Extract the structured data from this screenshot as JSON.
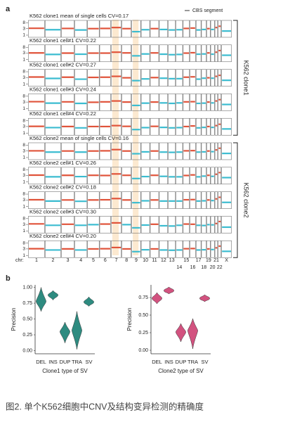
{
  "chart_data": [
    {
      "type": "cnv",
      "panel_label": "a",
      "legend": "CBS segment",
      "x_label": "chr:",
      "categories": [
        "1",
        "2",
        "3",
        "4",
        "5",
        "6",
        "7",
        "8",
        "9",
        "10",
        "11",
        "12",
        "13",
        "14",
        "15",
        "16",
        "17",
        "18",
        "19",
        "20",
        "21",
        "22",
        "X"
      ],
      "yscale": "log",
      "ylim": [
        0.7,
        12
      ],
      "yticks": [
        1,
        3,
        8
      ],
      "high_color": "#e0533a",
      "low_color": "#3bbcd0",
      "groups": [
        {
          "label": "K562 clone1",
          "panels": [
            0,
            4
          ]
        },
        {
          "label": "K562 clone2",
          "panels": [
            5,
            9
          ]
        }
      ],
      "panels": [
        {
          "title": "K562 clone1 mean of single cells CV=0.17",
          "values": [
            3.2,
            2.5,
            3.1,
            2.4,
            3,
            3.1,
            3.6,
            3,
            1.8,
            2.5,
            3,
            2.6,
            2.4,
            2.5,
            3.1,
            3.3,
            2.4,
            2.6,
            3,
            2.6,
            3.6,
            4.5,
            2
          ]
        },
        {
          "title": "K562 clone1 cell#1 CV=0.22",
          "values": [
            3.1,
            2.4,
            3,
            2.5,
            3,
            3,
            3.5,
            3.1,
            1.9,
            2.6,
            3.1,
            2.5,
            2.3,
            2.4,
            3,
            3.2,
            2.5,
            2.6,
            3.1,
            2.5,
            3.5,
            4.6,
            2.1
          ]
        },
        {
          "title": "K562 clone1 cell#2 CV=0.27",
          "values": [
            3.3,
            2.6,
            3.2,
            2.3,
            3.1,
            3.2,
            3.7,
            2.9,
            1.8,
            2.4,
            3,
            2.7,
            2.5,
            2.5,
            3.2,
            3.4,
            2.3,
            2.7,
            2.9,
            2.7,
            3.7,
            4.4,
            1.9
          ]
        },
        {
          "title": "K562 clone1 cell#3 CV=0.24",
          "values": [
            3.2,
            2.5,
            3.1,
            2.4,
            2.9,
            3.1,
            3.6,
            3,
            1.7,
            2.5,
            3,
            2.6,
            2.4,
            2.6,
            3.1,
            3.2,
            2.4,
            2.5,
            3,
            2.6,
            3.6,
            4.5,
            2
          ]
        },
        {
          "title": "K562 clone1 cell#4 CV=0.22",
          "values": [
            3.1,
            2.5,
            3,
            2.4,
            3,
            3,
            3.5,
            3.1,
            1.8,
            2.5,
            3.1,
            2.6,
            2.4,
            2.5,
            3,
            3.3,
            2.4,
            2.6,
            3,
            2.6,
            3.5,
            4.4,
            2
          ]
        },
        {
          "title": "K562 clone2 mean of single cells CV=0.16",
          "values": [
            3.1,
            2.5,
            3,
            2.5,
            3,
            3.1,
            3.8,
            3,
            1.9,
            2.6,
            3,
            2.5,
            2.4,
            2.5,
            3.1,
            3.2,
            2.5,
            2.6,
            3,
            2.7,
            3.6,
            4.8,
            2
          ]
        },
        {
          "title": "K562 clone2 cell#1 CV=0.26",
          "values": [
            3.2,
            2.4,
            3.1,
            2.5,
            3.1,
            3,
            3.9,
            3.1,
            1.8,
            2.5,
            3.1,
            2.6,
            2.4,
            2.4,
            3,
            3.3,
            2.4,
            2.7,
            3.1,
            2.6,
            3.7,
            4.9,
            2.1
          ]
        },
        {
          "title": "K562 clone2 cell#2 CV=0.18",
          "values": [
            3.1,
            2.5,
            3,
            2.4,
            3,
            3.1,
            3.8,
            3,
            1.9,
            2.6,
            3,
            2.5,
            2.5,
            2.5,
            3.1,
            3.2,
            2.5,
            2.6,
            3,
            2.7,
            3.6,
            4.7,
            2
          ]
        },
        {
          "title": "K562 clone2 cell#3 CV=0.30",
          "values": [
            3.3,
            2.6,
            3.1,
            2.6,
            2.9,
            3.2,
            3.9,
            2.9,
            1.7,
            2.7,
            3.1,
            2.4,
            2.3,
            2.6,
            3.2,
            3.1,
            2.6,
            2.5,
            2.9,
            2.8,
            3.5,
            4.9,
            1.9
          ]
        },
        {
          "title": "K562 clone2 cell#4 CV=0.20",
          "values": [
            3.1,
            2.5,
            3,
            2.5,
            3,
            3.1,
            3.8,
            3,
            1.9,
            2.6,
            3,
            2.5,
            2.4,
            2.5,
            3.1,
            3.2,
            2.5,
            2.6,
            3,
            2.7,
            3.6,
            4.8,
            2
          ]
        }
      ]
    },
    {
      "type": "violin",
      "panel_label": "b",
      "y_label": "Precision",
      "x_label": "Clone1 type of SV",
      "categories": [
        "DEL",
        "INS",
        "DUP",
        "TRA",
        "SV"
      ],
      "color": "#2e8b80",
      "ylim": [
        -0.05,
        1.04
      ],
      "yticks": [
        {
          "value": 0,
          "label": "0.00"
        },
        {
          "value": 0.25,
          "label": "0.25"
        },
        {
          "value": 0.5,
          "label": "0.50"
        },
        {
          "value": 0.75,
          "label": "0.75"
        },
        {
          "value": 1,
          "label": "1.00"
        }
      ],
      "values": [
        0.78,
        0.88,
        0.3,
        0.32,
        0.77
      ],
      "lows": [
        0.62,
        0.8,
        0.12,
        0.02,
        0.7
      ],
      "highs": [
        1.0,
        0.95,
        0.45,
        0.62,
        0.85
      ]
    },
    {
      "type": "violin",
      "y_label": "Precision",
      "x_label": "Clone2 type of SV",
      "categories": [
        "DEL",
        "INS",
        "DUP",
        "TRA",
        "SV"
      ],
      "color": "#d2527f",
      "ylim": [
        -0.05,
        0.93
      ],
      "yticks": [
        {
          "value": 0,
          "label": "0.00"
        },
        {
          "value": 0.25,
          "label": "0.25"
        },
        {
          "value": 0.5,
          "label": "0.50"
        },
        {
          "value": 0.75,
          "label": "0.75"
        }
      ],
      "values": [
        0.74,
        0.85,
        0.26,
        0.28,
        0.74
      ],
      "lows": [
        0.66,
        0.8,
        0.12,
        0.02,
        0.69
      ],
      "highs": [
        0.82,
        0.9,
        0.38,
        0.45,
        0.79
      ]
    }
  ],
  "caption": "图2. 单个K562细胞中CNV及结构变异检测的精确度"
}
